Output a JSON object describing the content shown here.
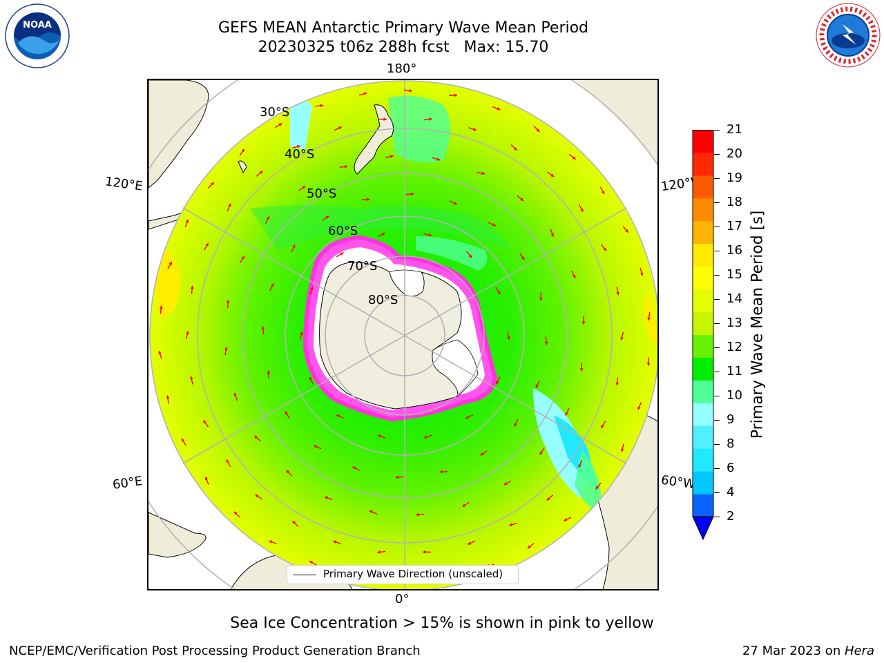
{
  "title": {
    "line1": "GEFS MEAN Antarctic Primary Wave Mean Period",
    "line2": "20230325 t06z 288h fcst   Max: 15.70"
  },
  "map": {
    "longitude_labels": {
      "top": "180°",
      "bottom": "0°",
      "upper_left": "120°E",
      "upper_right": "120°W",
      "lower_left": "60°E",
      "lower_right": "60°W"
    },
    "latitude_labels": [
      "30°S",
      "40°S",
      "50°S",
      "60°S",
      "70°S",
      "80°S"
    ],
    "legend": "Primary Wave Direction (unscaled)"
  },
  "colorbar": {
    "label": "Primary Wave Mean Period [s]",
    "ticks": [
      "21",
      "20",
      "19",
      "18",
      "17",
      "16",
      "15",
      "14",
      "13",
      "12",
      "11",
      "10",
      "9",
      "8",
      "6",
      "4",
      "2"
    ],
    "colors_bottom_to_top": [
      "#0a64ff",
      "#00c8ff",
      "#20e8ff",
      "#50f0ff",
      "#96ffff",
      "#50ff96",
      "#00ee00",
      "#66f200",
      "#c8f600",
      "#e6ff00",
      "#ffff00",
      "#ffea00",
      "#ffb400",
      "#ff8c00",
      "#ff5a00",
      "#ff2800",
      "#ff0000"
    ],
    "extend_color": "#0000ff"
  },
  "note": "Sea Ice Concentration > 15% is shown in pink to yellow",
  "footer": {
    "left": "NCEP/EMC/Verification Post Processing Product Generation Branch",
    "date": "27 Mar 2023 on ",
    "machine": "Hera"
  },
  "logos": {
    "noaa": "NOAA",
    "nws": "NATIONAL WEATHER SERVICE"
  },
  "colors": {
    "land": "#efedd9",
    "antarctica": "#f0eedf",
    "ice_edge": "#ff33dd",
    "ice_interior": "#ffffff",
    "arrow": "#ff0000",
    "gridline": "#b3b3b3"
  }
}
